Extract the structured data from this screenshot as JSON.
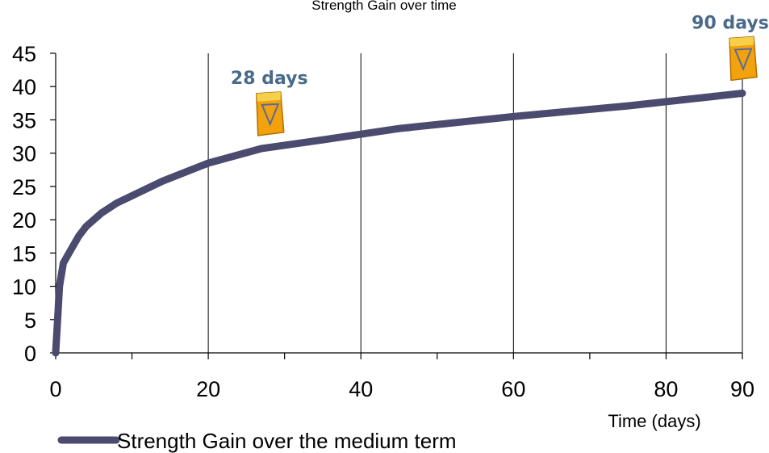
{
  "chart_data": {
    "type": "line",
    "title": "Strength Gain over time",
    "xlabel": "Time (days)",
    "ylabel": "",
    "xlim": [
      0,
      90
    ],
    "ylim": [
      0,
      45
    ],
    "x_ticks": [
      0,
      20,
      40,
      60,
      80,
      90
    ],
    "y_ticks": [
      0,
      5,
      10,
      15,
      20,
      25,
      30,
      35,
      40,
      45
    ],
    "grid": "vertical",
    "legend_position": "bottom-left",
    "colors": {
      "line": "#4b4a6f",
      "callout": "#4a6a8a",
      "grid": "#000000"
    },
    "series": [
      {
        "name": "Strength Gain over the medium term",
        "x": [
          0,
          0.25,
          0.5,
          1,
          2,
          3,
          4,
          6,
          8,
          10,
          14,
          20,
          27,
          35,
          45,
          60,
          75,
          90
        ],
        "values": [
          0,
          5,
          10,
          13.5,
          15.5,
          17.5,
          19,
          21,
          22.5,
          23.6,
          25.8,
          28.5,
          30.7,
          32,
          33.7,
          35.5,
          37.1,
          39
        ]
      }
    ],
    "annotations": [
      {
        "label": "28 days",
        "x": 28,
        "y": 30.7,
        "icon": "prompt-product-bag-icon"
      },
      {
        "label": "90 days",
        "x": 90,
        "y": 39,
        "icon": "prompt-product-bag-icon"
      }
    ]
  }
}
